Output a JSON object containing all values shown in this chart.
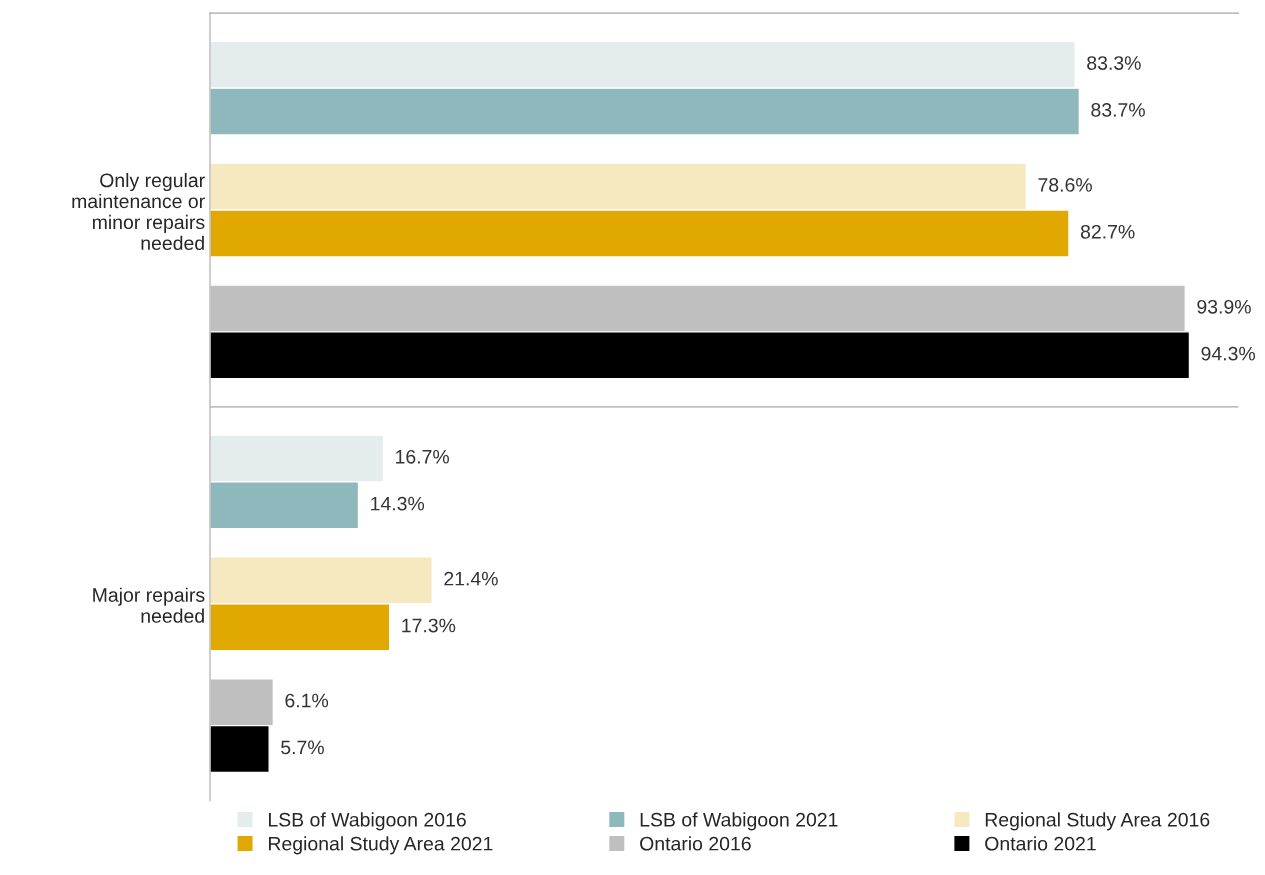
{
  "chart_data": {
    "type": "bar",
    "orientation": "horizontal",
    "categories": [
      "Only regular\nmaintenance or\nminor repairs\nneeded",
      "Major repairs\nneeded"
    ],
    "series": [
      {
        "name": "LSB of Wabigoon 2016",
        "color": "#e4ecee",
        "values": [
          83.3,
          16.7
        ],
        "value_labels": [
          "83.3%",
          "16.7%"
        ]
      },
      {
        "name": "LSB of Wabigoon 2021",
        "color": "#8fb8bd",
        "values": [
          83.7,
          14.3
        ],
        "value_labels": [
          "83.7%",
          "14.3%"
        ]
      },
      {
        "name": "Regional Study Area 2016",
        "color": "#f7e9bf",
        "values": [
          78.6,
          21.4
        ],
        "value_labels": [
          "78.6%",
          "21.4%"
        ]
      },
      {
        "name": "Regional Study Area 2021",
        "color": "#e0a800",
        "values": [
          82.7,
          17.3
        ],
        "value_labels": [
          "82.7%",
          "17.3%"
        ]
      },
      {
        "name": "Ontario 2016",
        "color": "#bfbfbf",
        "values": [
          93.9,
          6.1
        ],
        "value_labels": [
          "93.9%",
          "6.1%"
        ]
      },
      {
        "name": "Ontario 2021",
        "color": "#000000",
        "values": [
          94.3,
          5.7
        ],
        "value_labels": [
          "94.3%",
          "5.7%"
        ]
      }
    ],
    "tick_labels": "y",
    "grid": false,
    "legend": "bottom"
  }
}
